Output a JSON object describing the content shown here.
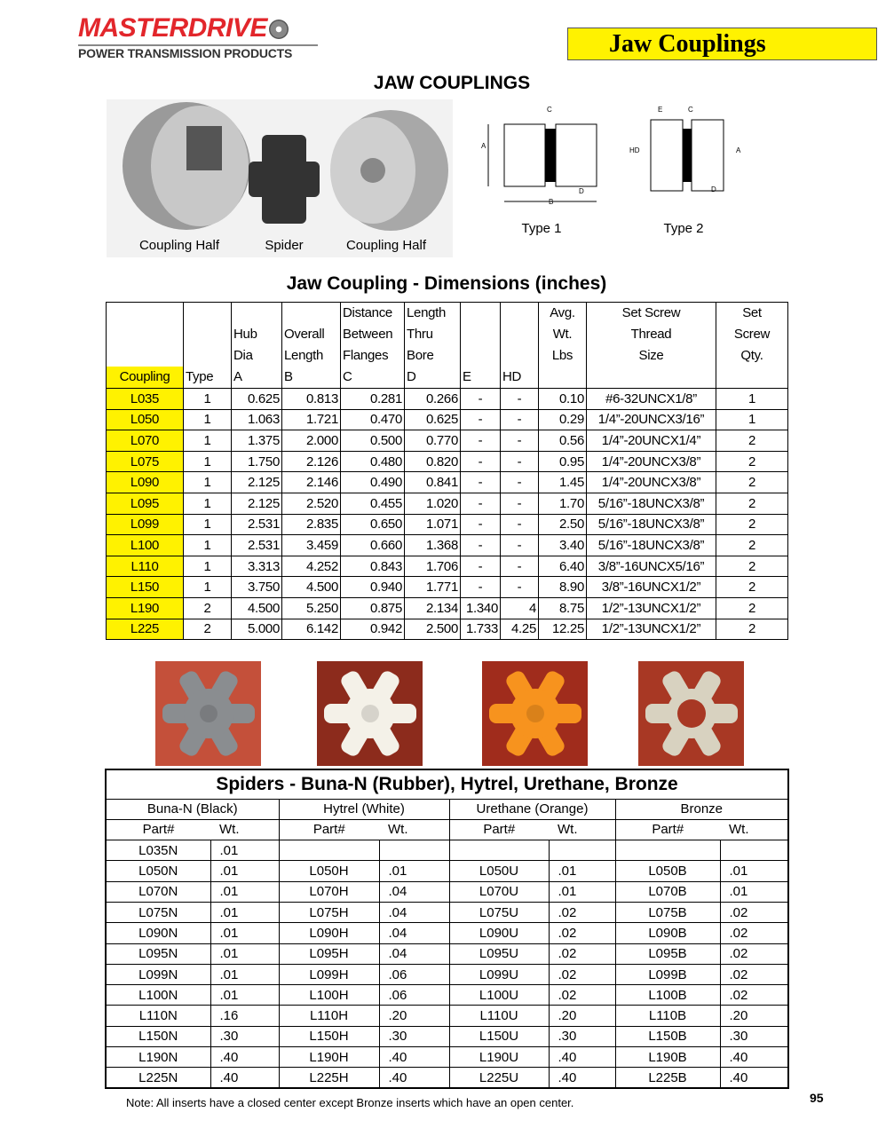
{
  "header": {
    "brand": "MASTERDRIVE",
    "tagline": "POWER TRANSMISSION PRODUCTS",
    "banner": "Jaw Couplings"
  },
  "page_title": "JAW COUPLINGS",
  "photo_captions": [
    "Coupling Half",
    "Spider",
    "Coupling Half"
  ],
  "diagrams": [
    {
      "label": "Type 1",
      "dims": [
        "A",
        "B",
        "C",
        "D"
      ]
    },
    {
      "label": "Type 2",
      "dims": [
        "HD",
        "A",
        "E",
        "C",
        "D"
      ]
    }
  ],
  "dimensions": {
    "title": "Jaw Coupling - Dimensions (inches)",
    "header_top": [
      "",
      "",
      "Hub\nDia",
      "Overall\nLength",
      "Distance\nBetween\nFlanges",
      "Length\nThru\nBore",
      "",
      "",
      "Avg.\nWt.\nLbs",
      "Set Screw\nThread\nSize",
      "Set\nScrew\nQty."
    ],
    "header_bottom": [
      "Coupling",
      "Type",
      "A",
      "B",
      "C",
      "D",
      "E",
      "HD"
    ],
    "rows": [
      [
        "L035",
        "1",
        "0.625",
        "0.813",
        "0.281",
        "0.266",
        "-",
        "-",
        "0.10",
        "#6-32UNCX1/8”",
        "1"
      ],
      [
        "L050",
        "1",
        "1.063",
        "1.721",
        "0.470",
        "0.625",
        "-",
        "-",
        "0.29",
        "1/4”-20UNCX3/16”",
        "1"
      ],
      [
        "L070",
        "1",
        "1.375",
        "2.000",
        "0.500",
        "0.770",
        "-",
        "-",
        "0.56",
        "1/4”-20UNCX1/4”",
        "2"
      ],
      [
        "L075",
        "1",
        "1.750",
        "2.126",
        "0.480",
        "0.820",
        "-",
        "-",
        "0.95",
        "1/4”-20UNCX3/8”",
        "2"
      ],
      [
        "L090",
        "1",
        "2.125",
        "2.146",
        "0.490",
        "0.841",
        "-",
        "-",
        "1.45",
        "1/4”-20UNCX3/8”",
        "2"
      ],
      [
        "L095",
        "1",
        "2.125",
        "2.520",
        "0.455",
        "1.020",
        "-",
        "-",
        "1.70",
        "5/16”-18UNCX3/8”",
        "2"
      ],
      [
        "L099",
        "1",
        "2.531",
        "2.835",
        "0.650",
        "1.071",
        "-",
        "-",
        "2.50",
        "5/16”-18UNCX3/8”",
        "2"
      ],
      [
        "L100",
        "1",
        "2.531",
        "3.459",
        "0.660",
        "1.368",
        "-",
        "-",
        "3.40",
        "5/16”-18UNCX3/8”",
        "2"
      ],
      [
        "L110",
        "1",
        "3.313",
        "4.252",
        "0.843",
        "1.706",
        "-",
        "-",
        "6.40",
        "3/8”-16UNCX5/16”",
        "2"
      ],
      [
        "L150",
        "1",
        "3.750",
        "4.500",
        "0.940",
        "1.771",
        "-",
        "-",
        "8.90",
        "3/8”-16UNCX1/2”",
        "2"
      ],
      [
        "L190",
        "2",
        "4.500",
        "5.250",
        "0.875",
        "2.134",
        "1.340",
        "4",
        "8.75",
        "1/2”-13UNCX1/2”",
        "2"
      ],
      [
        "L225",
        "2",
        "5.000",
        "6.142",
        "0.942",
        "2.500",
        "1.733",
        "4.25",
        "12.25",
        "1/2”-13UNCX1/2”",
        "2"
      ]
    ]
  },
  "spider_colors": [
    "#8a8d90",
    "#f4f1e8",
    "#f7931e",
    "#d8d2c0"
  ],
  "spiders": {
    "title": "Spiders - Buna-N (Rubber), Hytrel, Urethane, Bronze",
    "groups": [
      "Buna-N (Black)",
      "Hytrel (White)",
      "Urethane (Orange)",
      "Bronze"
    ],
    "sub": [
      "Part#",
      "Wt."
    ],
    "rows": [
      [
        "L035N",
        ".01",
        "",
        "",
        "",
        "",
        "",
        ""
      ],
      [
        "L050N",
        ".01",
        "L050H",
        ".01",
        "L050U",
        ".01",
        "L050B",
        ".01"
      ],
      [
        "L070N",
        ".01",
        "L070H",
        ".04",
        "L070U",
        ".01",
        "L070B",
        ".01"
      ],
      [
        "L075N",
        ".01",
        "L075H",
        ".04",
        "L075U",
        ".02",
        "L075B",
        ".02"
      ],
      [
        "L090N",
        ".01",
        "L090H",
        ".04",
        "L090U",
        ".02",
        "L090B",
        ".02"
      ],
      [
        "L095N",
        ".01",
        "L095H",
        ".04",
        "L095U",
        ".02",
        "L095B",
        ".02"
      ],
      [
        "L099N",
        ".01",
        "L099H",
        ".06",
        "L099U",
        ".02",
        "L099B",
        ".02"
      ],
      [
        "L100N",
        ".01",
        "L100H",
        ".06",
        "L100U",
        ".02",
        "L100B",
        ".02"
      ],
      [
        "L110N",
        ".16",
        "L110H",
        ".20",
        "L110U",
        ".20",
        "L110B",
        ".20"
      ],
      [
        "L150N",
        ".30",
        "L150H",
        ".30",
        "L150U",
        ".30",
        "L150B",
        ".30"
      ],
      [
        "L190N",
        ".40",
        "L190H",
        ".40",
        "L190U",
        ".40",
        "L190B",
        ".40"
      ],
      [
        "L225N",
        ".40",
        "L225H",
        ".40",
        "L225U",
        ".40",
        "L225B",
        ".40"
      ]
    ]
  },
  "note": "Note: All inserts have a closed center except Bronze inserts which have an open center.",
  "page_number": "95"
}
